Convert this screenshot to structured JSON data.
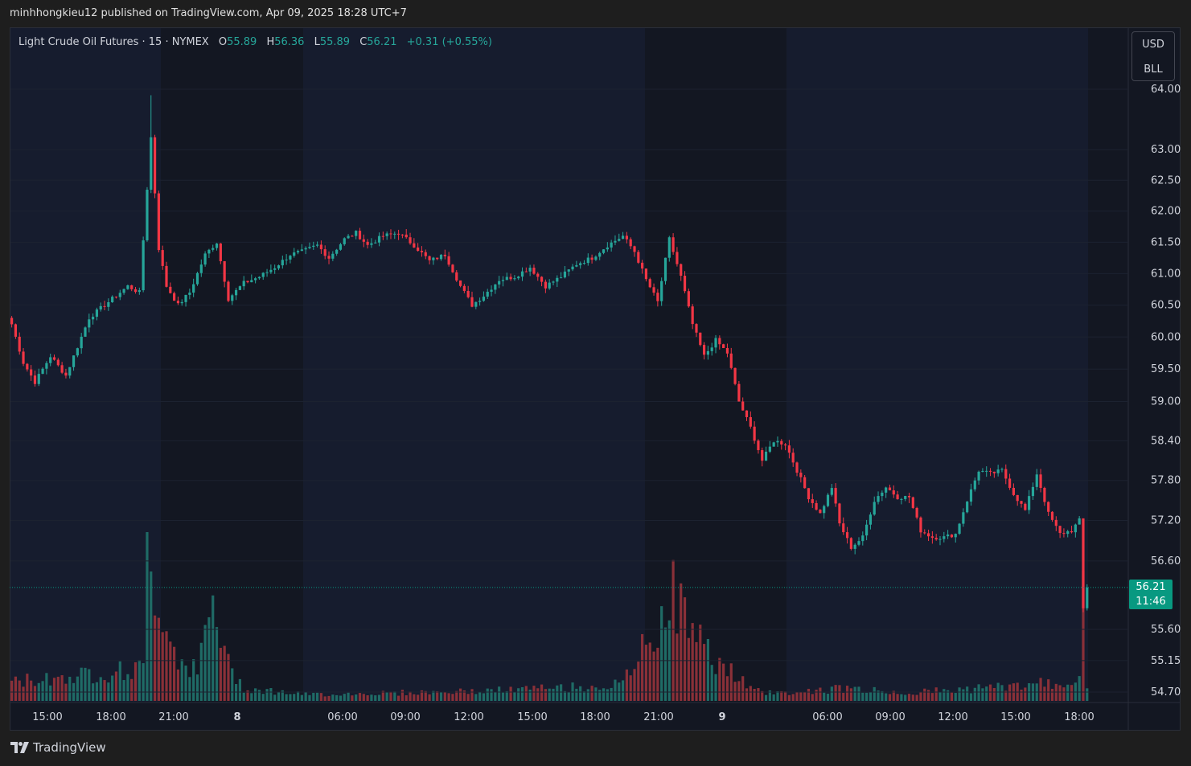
{
  "published_line": "minhhongkieu12 published on TradingView.com, Apr 09, 2025 18:28 UTC+7",
  "legend": {
    "symbol": "Light Crude Oil Futures · 15 · NYMEX",
    "o_label": "O",
    "o_value": "55.89",
    "h_label": "H",
    "h_value": "56.36",
    "l_label": "L",
    "l_value": "55.89",
    "c_label": "C",
    "c_value": "56.21",
    "change": "+0.31 (+0.55%)"
  },
  "units": {
    "currency": "USD",
    "unit": "BLL"
  },
  "current_price": {
    "value": "56.21",
    "countdown": "11:46"
  },
  "footer": {
    "brand": "TradingView",
    "logo_icon": "tradingview-logo-icon"
  },
  "colors": {
    "up": "#26a69a",
    "down": "#f23645",
    "vol_up": "#1f6b66",
    "vol_down": "#8a3038",
    "bg": "#131722",
    "session_bg": "#161c2e"
  },
  "chart_data": {
    "type": "candlestick",
    "title": "Light Crude Oil Futures · 15 · NYMEX",
    "y_axis_ticks": [
      "64.00",
      "63.00",
      "62.50",
      "62.00",
      "61.50",
      "61.00",
      "60.50",
      "60.00",
      "59.50",
      "59.00",
      "58.40",
      "57.80",
      "57.20",
      "56.60",
      "55.60",
      "55.15",
      "54.70"
    ],
    "x_axis_ticks": [
      "15:00",
      "18:00",
      "21:00",
      "8",
      "06:00",
      "09:00",
      "12:00",
      "15:00",
      "18:00",
      "21:00",
      "9",
      "06:00",
      "09:00",
      "12:00",
      "15:00",
      "18:00"
    ],
    "scale": "log",
    "anchors": [
      [
        0,
        60.2
      ],
      [
        3,
        59.6
      ],
      [
        6,
        59.3
      ],
      [
        10,
        59.7
      ],
      [
        14,
        59.4
      ],
      [
        20,
        60.3
      ],
      [
        26,
        60.6
      ],
      [
        30,
        60.8
      ],
      [
        33,
        60.7
      ],
      [
        36,
        63.2
      ],
      [
        38,
        61.4
      ],
      [
        40,
        60.8
      ],
      [
        43,
        60.5
      ],
      [
        46,
        60.7
      ],
      [
        50,
        61.3
      ],
      [
        53,
        61.5
      ],
      [
        56,
        60.6
      ],
      [
        60,
        60.85
      ],
      [
        64,
        60.95
      ],
      [
        68,
        61.1
      ],
      [
        72,
        61.3
      ],
      [
        75,
        61.35
      ],
      [
        79,
        61.45
      ],
      [
        82,
        61.25
      ],
      [
        86,
        61.55
      ],
      [
        89,
        61.65
      ],
      [
        92,
        61.45
      ],
      [
        96,
        61.6
      ],
      [
        100,
        61.65
      ],
      [
        104,
        61.45
      ],
      [
        108,
        61.2
      ],
      [
        112,
        61.3
      ],
      [
        116,
        60.8
      ],
      [
        119,
        60.5
      ],
      [
        122,
        60.65
      ],
      [
        126,
        60.9
      ],
      [
        130,
        60.95
      ],
      [
        134,
        61.1
      ],
      [
        138,
        60.8
      ],
      [
        142,
        60.95
      ],
      [
        146,
        61.15
      ],
      [
        150,
        61.25
      ],
      [
        154,
        61.45
      ],
      [
        158,
        61.6
      ],
      [
        161,
        61.35
      ],
      [
        164,
        60.9
      ],
      [
        167,
        60.55
      ],
      [
        170,
        61.55
      ],
      [
        173,
        60.95
      ],
      [
        176,
        60.2
      ],
      [
        179,
        59.7
      ],
      [
        182,
        59.95
      ],
      [
        185,
        59.75
      ],
      [
        188,
        59.0
      ],
      [
        191,
        58.6
      ],
      [
        194,
        58.1
      ],
      [
        197,
        58.4
      ],
      [
        200,
        58.35
      ],
      [
        203,
        57.95
      ],
      [
        206,
        57.55
      ],
      [
        209,
        57.3
      ],
      [
        212,
        57.7
      ],
      [
        214,
        57.15
      ],
      [
        217,
        56.8
      ],
      [
        220,
        56.95
      ],
      [
        223,
        57.5
      ],
      [
        226,
        57.7
      ],
      [
        229,
        57.55
      ],
      [
        232,
        57.55
      ],
      [
        235,
        57.05
      ],
      [
        238,
        56.95
      ],
      [
        241,
        56.95
      ],
      [
        244,
        57.0
      ],
      [
        247,
        57.5
      ],
      [
        250,
        57.95
      ],
      [
        253,
        57.9
      ],
      [
        256,
        57.95
      ],
      [
        259,
        57.6
      ],
      [
        262,
        57.35
      ],
      [
        265,
        57.9
      ],
      [
        268,
        57.3
      ],
      [
        271,
        57.0
      ],
      [
        274,
        57.05
      ],
      [
        276,
        57.2
      ],
      [
        277,
        55.9
      ],
      [
        278,
        56.21
      ]
    ],
    "volume_profile": [
      [
        0,
        0.12
      ],
      [
        34,
        0.2
      ],
      [
        35,
        0.9
      ],
      [
        36,
        0.85
      ],
      [
        40,
        0.45
      ],
      [
        44,
        0.25
      ],
      [
        48,
        0.18
      ],
      [
        52,
        0.6
      ],
      [
        56,
        0.22
      ],
      [
        60,
        0.08
      ],
      [
        76,
        0.04
      ],
      [
        120,
        0.06
      ],
      [
        158,
        0.1
      ],
      [
        161,
        0.25
      ],
      [
        166,
        0.4
      ],
      [
        170,
        0.7
      ],
      [
        176,
        0.45
      ],
      [
        180,
        0.3
      ],
      [
        186,
        0.18
      ],
      [
        192,
        0.06
      ],
      [
        200,
        0.05
      ],
      [
        216,
        0.08
      ],
      [
        230,
        0.05
      ],
      [
        245,
        0.07
      ],
      [
        262,
        0.1
      ],
      [
        275,
        0.12
      ],
      [
        276,
        0.2
      ],
      [
        277,
        0.6
      ],
      [
        278,
        0.1
      ]
    ]
  }
}
